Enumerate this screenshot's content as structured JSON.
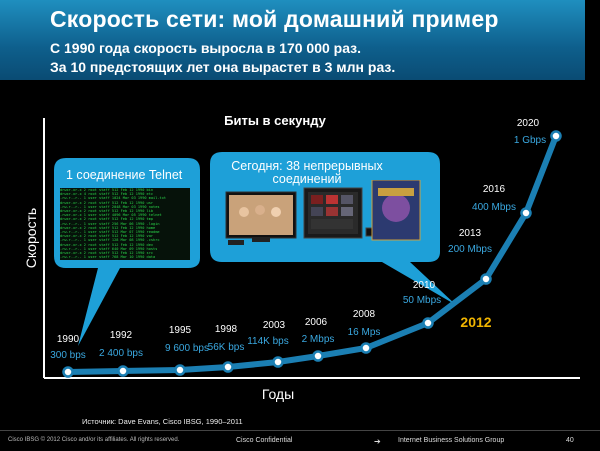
{
  "header": {
    "title": "Скорость сети: мой домашний пример",
    "subtitle_line1": "С 1990 года скорость выросла в 170 000 раз.",
    "subtitle_line2": "За 10 предстоящих лет она вырастет в 3 млн раз."
  },
  "callouts": {
    "telnet": "1 соединение Telnet",
    "today": "Сегодня: 38 непрерывных соединений"
  },
  "terminal_lines": [
    "drwxr-xr-x  2 root  staff  512 Feb 12 1990 bin",
    "drwxr-xr-x  4 root  staff  512 Feb 12 1990 etc",
    "-rw-r--r--  1 user  staff 1024 Mar 03 1990 mail.txt",
    "drwxr-xr-x  2 root  staff  512 Feb 12 1990 usr",
    "-rw-r--r--  1 user  staff 2048 Mar 03 1990 notes",
    "drwxr-xr-x  2 root  staff  512 Feb 12 1990 lib",
    "-rwxr-xr-x  1 user  staff 4096 Mar 05 1990 telnet",
    "drwxr-xr-x  2 root  staff  512 Feb 12 1990 tmp",
    "-rw-r--r--  1 user  staff  256 Mar 06 1990 .login",
    "drwxr-xr-x  2 root  staff  512 Feb 12 1990 home",
    "-rw-r--r--  1 user  staff  512 Mar 07 1990 readme",
    "drwxr-xr-x  2 root  staff  512 Feb 12 1990 var",
    "-rw-r--r--  1 user  staff  128 Mar 08 1990 .cshrc",
    "drwxr-xr-x  2 root  staff  512 Feb 12 1990 dev",
    "-rw-r--r--  1 user  staff  640 Mar 09 1990 hosts",
    "drwxr-xr-x  2 root  staff  512 Feb 12 1990 src",
    "-rw-r--r--  1 user  staff  768 Mar 10 1990 data"
  ],
  "chart_data": {
    "type": "line",
    "title": "Биты в секунду",
    "xlabel": "Годы",
    "ylabel": "Скорость",
    "highlight_year": "2012",
    "highlight_color": "#f0b400",
    "line_color": "#1b7fb3",
    "label_color": "#3aa8e0",
    "points": [
      {
        "year": "1990",
        "speed": "300 bps"
      },
      {
        "year": "1992",
        "speed": "2 400 bps"
      },
      {
        "year": "1995",
        "speed": "9 600 bps"
      },
      {
        "year": "1998",
        "speed": "56K bps"
      },
      {
        "year": "2003",
        "speed": "114K bps"
      },
      {
        "year": "2006",
        "speed": "2 Mbps"
      },
      {
        "year": "2008",
        "speed": "16 Mps"
      },
      {
        "year": "2010",
        "speed": "50 Mbps"
      },
      {
        "year": "2013",
        "speed": "200 Mbps"
      },
      {
        "year": "2016",
        "speed": "400 Mbps"
      },
      {
        "year": "2020",
        "speed": "1 Gbps"
      }
    ]
  },
  "source": "Источник: Dave Evans, Cisco IBSG, 1990–2011",
  "footer": {
    "copyright": "Cisco IBSG © 2012 Cisco and/or its affiliates. All rights reserved.",
    "confidential": "Cisco Confidential",
    "group": "Internet Business Solutions Group",
    "page": "40"
  }
}
